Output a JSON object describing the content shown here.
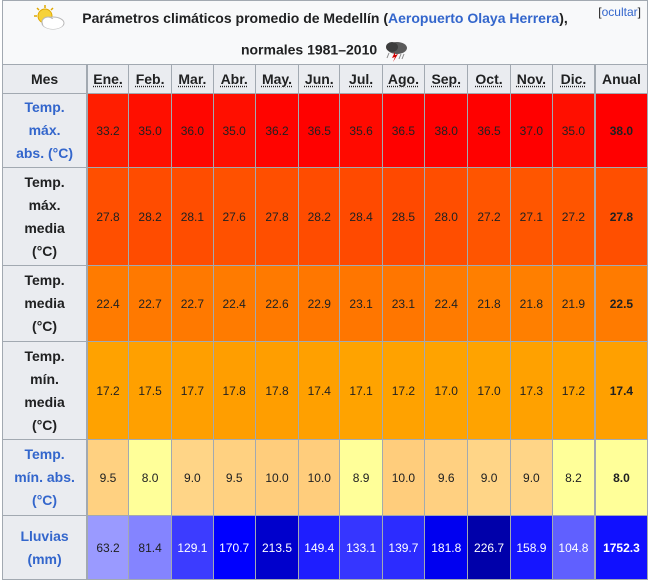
{
  "caption": {
    "prefix": "Parámetros climáticos promedio de Medellín (",
    "link": "Aeropuerto Olaya Herrera",
    "suffix": "),",
    "line2": "normales 1981–2010",
    "hide_open": "[",
    "hide_label": "ocultar",
    "hide_close": "]"
  },
  "header": {
    "row_label": "Mes",
    "months": [
      "Ene.",
      "Feb.",
      "Mar.",
      "Abr.",
      "May.",
      "Jun.",
      "Jul.",
      "Ago.",
      "Sep.",
      "Oct.",
      "Nov.",
      "Dic."
    ],
    "annual": "Anual"
  },
  "rows": [
    {
      "label_lines": [
        "Temp.",
        "máx.",
        "abs. (°C)"
      ],
      "values": [
        "33.2",
        "35.0",
        "36.0",
        "35.0",
        "36.2",
        "36.5",
        "35.6",
        "36.5",
        "38.0",
        "36.5",
        "37.0",
        "35.0"
      ],
      "annual": "38.0",
      "colors": [
        "#ff1e00",
        "#ff0f00",
        "#ff0600",
        "#ff0f00",
        "#ff0400",
        "#ff0100",
        "#ff0a00",
        "#ff0100",
        "#ff0000",
        "#ff0100",
        "#ff0000",
        "#ff0f00"
      ],
      "annual_color": "#ff0000"
    },
    {
      "label_lines": [
        "Temp.",
        "máx.",
        "media",
        "(°C)"
      ],
      "values": [
        "27.8",
        "28.2",
        "28.1",
        "27.6",
        "27.8",
        "28.2",
        "28.4",
        "28.5",
        "28.0",
        "27.2",
        "27.1",
        "27.2"
      ],
      "annual": "27.8",
      "colors": [
        "#ff4f00",
        "#ff4c00",
        "#ff4d00",
        "#ff5100",
        "#ff4f00",
        "#ff4c00",
        "#ff4a00",
        "#ff4900",
        "#ff4e00",
        "#ff5500",
        "#ff5600",
        "#ff5500"
      ],
      "annual_color": "#ff4f00"
    },
    {
      "label_lines": [
        "Temp.",
        "media",
        "(°C)"
      ],
      "values": [
        "22.4",
        "22.7",
        "22.7",
        "22.4",
        "22.6",
        "22.9",
        "23.1",
        "23.1",
        "22.4",
        "21.8",
        "21.8",
        "21.9"
      ],
      "annual": "22.5",
      "colors": [
        "#ff7b00",
        "#ff7900",
        "#ff7900",
        "#ff7b00",
        "#ff7a00",
        "#ff7700",
        "#ff7600",
        "#ff7600",
        "#ff7b00",
        "#ff7f00",
        "#ff7f00",
        "#ff7f00"
      ],
      "annual_color": "#ff7b00"
    },
    {
      "label_lines": [
        "Temp.",
        "mín.",
        "media",
        "(°C)"
      ],
      "values": [
        "17.2",
        "17.5",
        "17.7",
        "17.8",
        "17.8",
        "17.4",
        "17.1",
        "17.2",
        "17.0",
        "17.0",
        "17.3",
        "17.2"
      ],
      "annual": "17.4",
      "colors": [
        "#ffa200",
        "#ffa000",
        "#ff9f00",
        "#ff9e00",
        "#ff9e00",
        "#ffa000",
        "#ffa300",
        "#ffa200",
        "#ffa300",
        "#ffa300",
        "#ffa100",
        "#ffa200"
      ],
      "annual_color": "#ffa000"
    },
    {
      "label_lines": [
        "Temp.",
        "mín. abs.",
        "(°C)"
      ],
      "values": [
        "9.5",
        "8.0",
        "9.0",
        "9.5",
        "10.0",
        "10.0",
        "8.9",
        "10.0",
        "9.6",
        "9.0",
        "9.0",
        "8.2"
      ],
      "annual": "8.0",
      "colors": [
        "#ffd181",
        "#ffff99",
        "#ffd587",
        "#ffd181",
        "#ffcd7c",
        "#ffcd7c",
        "#ffff99",
        "#ffcd7c",
        "#ffd081",
        "#ffd587",
        "#ffd587",
        "#ffff99"
      ],
      "annual_color": "#ffff99"
    },
    {
      "label_lines": [
        "Lluvias",
        "(mm)"
      ],
      "values": [
        "63.2",
        "81.4",
        "129.1",
        "170.7",
        "213.5",
        "149.4",
        "133.1",
        "139.7",
        "181.8",
        "226.7",
        "158.9",
        "104.8"
      ],
      "annual": "1752.3",
      "colors": [
        "#9a9aff",
        "#8484ff",
        "#3c3cff",
        "#0000ff",
        "#0000cc",
        "#1e1eff",
        "#3636ff",
        "#2c2cff",
        "#0000f0",
        "#0000aa",
        "#1515ff",
        "#6060ff"
      ],
      "annual_color": "#1010ff",
      "text_colors": [
        "#202122",
        "#202122",
        "#ffffff",
        "#ffffff",
        "#ffffff",
        "#ffffff",
        "#ffffff",
        "#ffffff",
        "#ffffff",
        "#ffffff",
        "#ffffff",
        "#ffffff"
      ],
      "annual_text_color": "#ffffff"
    }
  ],
  "row_heights": [
    74,
    98,
    76,
    98,
    76,
    64
  ],
  "icons": [
    "partly-cloudy-icon",
    "storm-cloud-icon"
  ]
}
